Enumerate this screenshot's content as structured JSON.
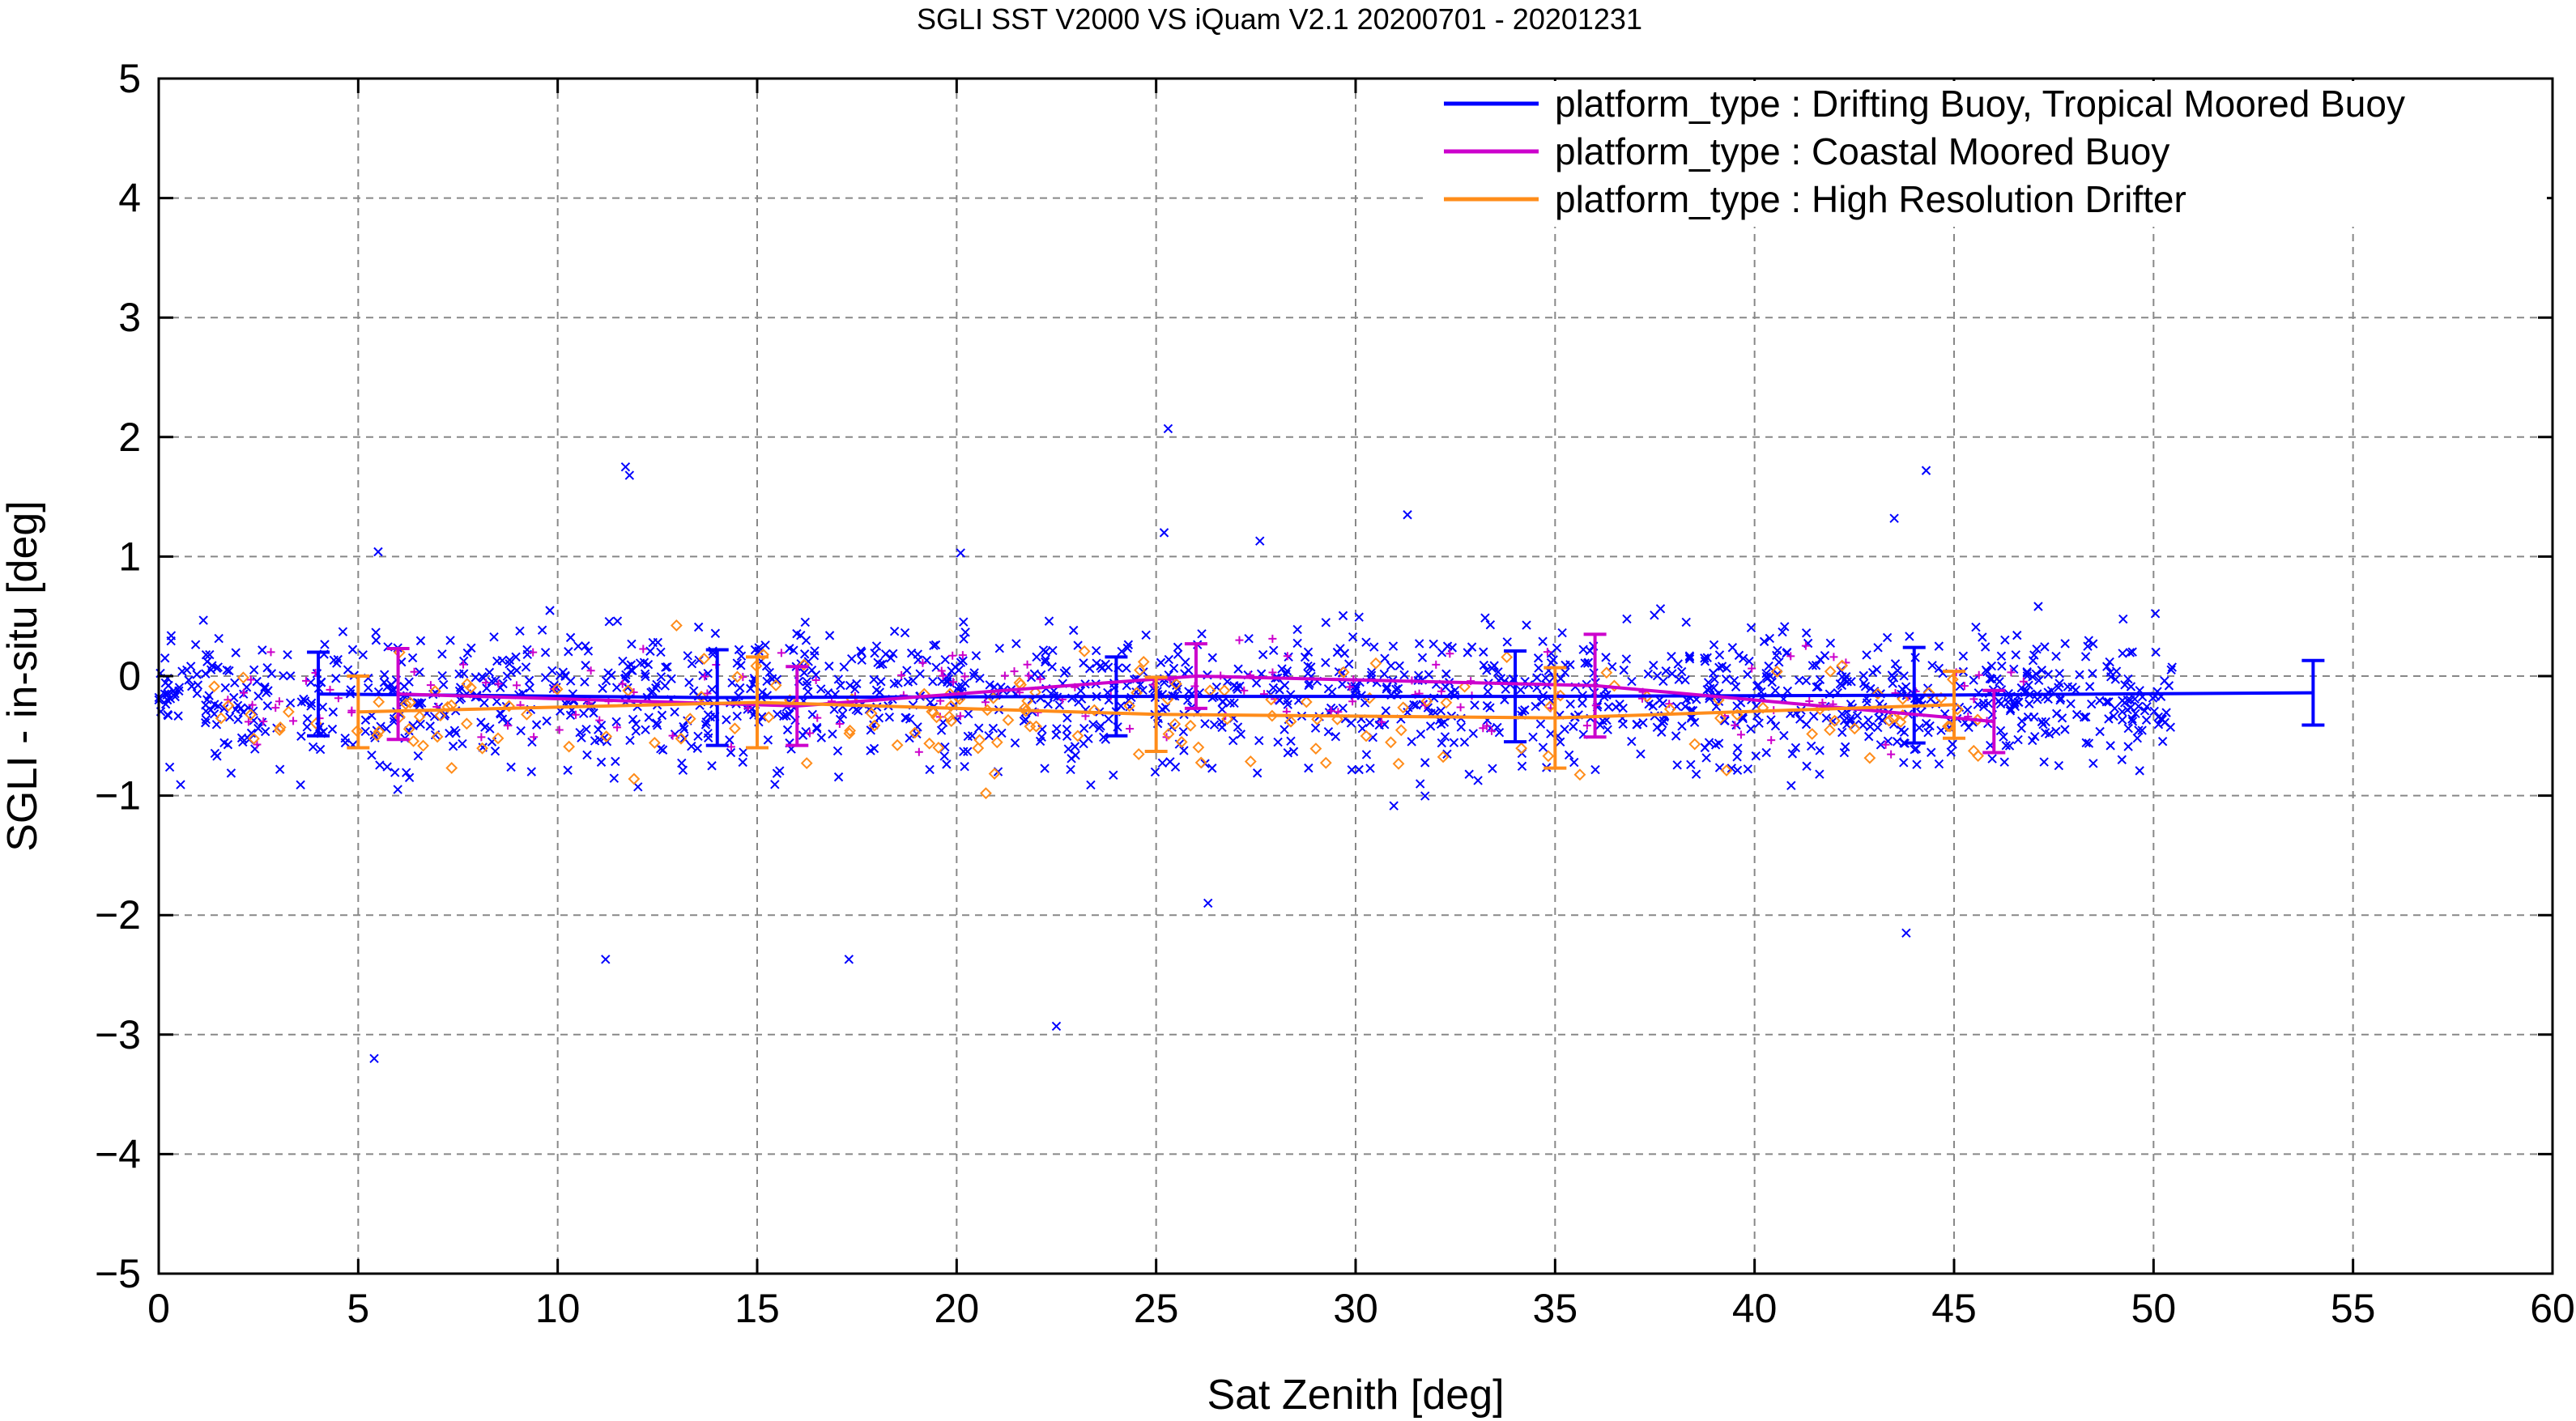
{
  "chart_data": {
    "type": "scatter",
    "title": "SGLI SST V2000 VS iQuam V2.1 20200701 - 20201231",
    "xlabel": "Sat Zenith [deg]",
    "ylabel": "SGLI - in-situ [deg]",
    "xlim": [
      0,
      60
    ],
    "ylim": [
      -5,
      5
    ],
    "xticks": [
      0,
      5,
      10,
      15,
      20,
      25,
      30,
      35,
      40,
      45,
      50,
      55,
      60
    ],
    "yticks": [
      -5,
      -4,
      -3,
      -2,
      -1,
      0,
      1,
      2,
      3,
      4,
      5
    ],
    "xtick_labels": [
      "0",
      "5",
      "10",
      "15",
      "20",
      "25",
      "30",
      "35",
      "40",
      "45",
      "50",
      "55",
      "60"
    ],
    "ytick_labels": [
      "−5",
      "−4",
      "−3",
      "−2",
      "−1",
      "0",
      "1",
      "2",
      "3",
      "4",
      "5"
    ],
    "grid": true,
    "legend_position": "top-right",
    "series": [
      {
        "name": "platform_type : Drifting Buoy, Tropical Moored Buoy",
        "color": "#0000ff",
        "marker": "x",
        "mean_line": {
          "x": [
            4,
            14,
            24,
            34,
            44,
            54
          ],
          "y": [
            -0.15,
            -0.18,
            -0.17,
            -0.17,
            -0.16,
            -0.14
          ],
          "err": [
            0.35,
            0.4,
            0.33,
            0.38,
            0.4,
            0.27
          ]
        },
        "scatter_summary": {
          "x_range": [
            0,
            50.5
          ],
          "center": -0.17,
          "spread": 0.45
        },
        "outliers": [
          {
            "x": 5.4,
            "y": -3.2
          },
          {
            "x": 11.2,
            "y": -2.37
          },
          {
            "x": 17.3,
            "y": -2.37
          },
          {
            "x": 22.5,
            "y": -2.93
          },
          {
            "x": 26.3,
            "y": -1.9
          },
          {
            "x": 43.8,
            "y": -2.15
          },
          {
            "x": 11.7,
            "y": 1.75
          },
          {
            "x": 11.8,
            "y": 1.68
          },
          {
            "x": 25.3,
            "y": 2.07
          },
          {
            "x": 44.3,
            "y": 1.72
          },
          {
            "x": 31.3,
            "y": 1.35
          },
          {
            "x": 43.5,
            "y": 1.32
          },
          {
            "x": 25.2,
            "y": 1.2
          },
          {
            "x": 27.6,
            "y": 1.13
          },
          {
            "x": 5.5,
            "y": 1.04
          },
          {
            "x": 20.1,
            "y": 1.03
          }
        ]
      },
      {
        "name": "platform_type : Coastal Moored Buoy",
        "color": "#cc00cc",
        "marker": "+",
        "mean_line": {
          "x": [
            6,
            16,
            26,
            36,
            46
          ],
          "y": [
            -0.15,
            -0.25,
            0.0,
            -0.08,
            -0.38
          ],
          "err": [
            0.38,
            0.33,
            0.27,
            0.43,
            0.26
          ]
        },
        "scatter_summary": {
          "x_range": [
            1,
            47
          ],
          "center": -0.15,
          "spread": 0.35
        }
      },
      {
        "name": "platform_type : High Resolution Drifter",
        "color": "#ff8c1a",
        "marker": "diamond",
        "mean_line": {
          "x": [
            5,
            15,
            25,
            35,
            45
          ],
          "y": [
            -0.3,
            -0.22,
            -0.32,
            -0.35,
            -0.24
          ],
          "err": [
            0.3,
            0.38,
            0.31,
            0.42,
            0.28
          ]
        },
        "scatter_summary": {
          "x_range": [
            1,
            46
          ],
          "center": -0.3,
          "spread": 0.4
        }
      }
    ]
  }
}
